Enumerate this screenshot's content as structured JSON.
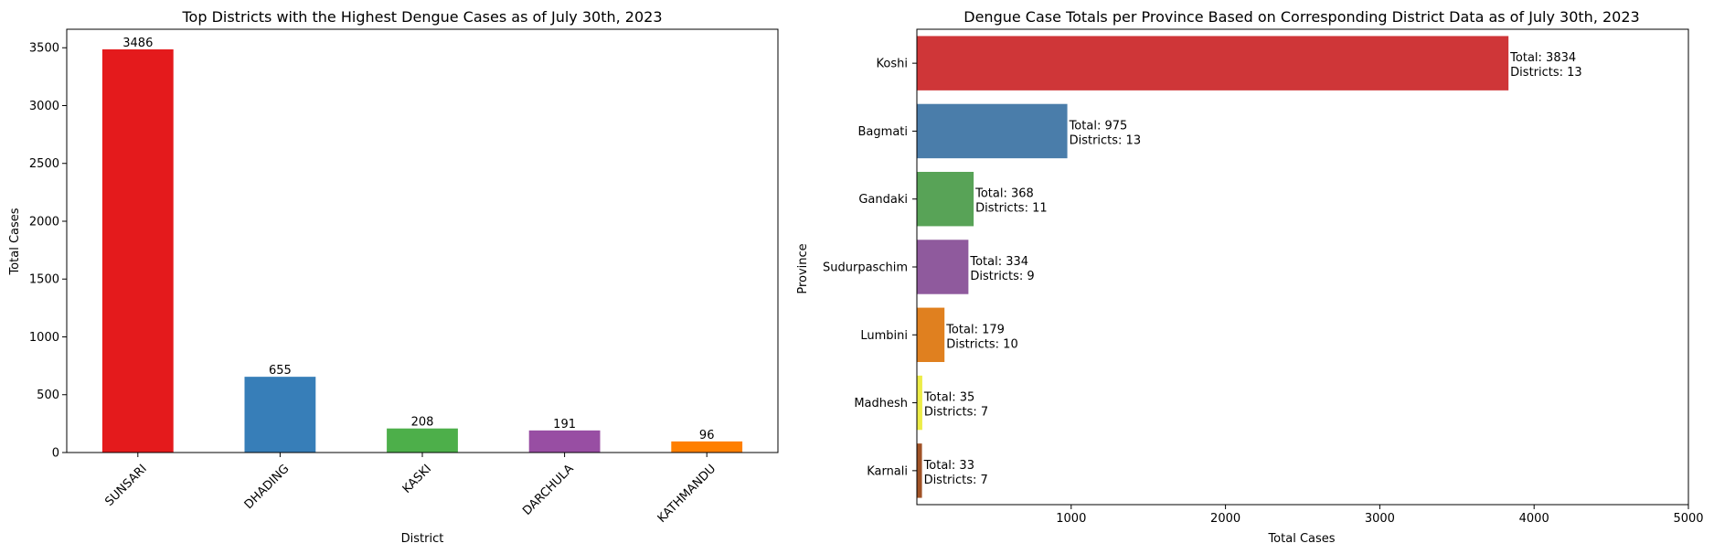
{
  "chart_data": [
    {
      "type": "bar",
      "title": "Top Districts with the Highest Dengue Cases as of July 30th, 2023",
      "xlabel": "District",
      "ylabel": "Total Cases",
      "categories": [
        "SUNSARI",
        "DHADING",
        "KASKI",
        "DARCHULA",
        "KATHMANDU"
      ],
      "values": [
        3486,
        655,
        208,
        191,
        96
      ],
      "data_labels": [
        "3486",
        "655",
        "208",
        "191",
        "96"
      ],
      "colors": [
        "#e41a1c",
        "#377eb8",
        "#4daf4a",
        "#984ea3",
        "#ff7f00"
      ],
      "ylim": [
        0,
        3660
      ],
      "yticks": [
        0,
        500,
        1000,
        1500,
        2000,
        2500,
        3000,
        3500
      ],
      "ytick_labels": [
        "0",
        "500",
        "1000",
        "1500",
        "2000",
        "2500",
        "3000",
        "3500"
      ],
      "xtick_rotation": 45,
      "grid": false
    },
    {
      "type": "bar",
      "orientation": "horizontal",
      "title": "Dengue Case Totals per Province Based on Corresponding District Data as of July 30th, 2023",
      "xlabel": "Total Cases",
      "ylabel": "Province",
      "categories": [
        "Koshi",
        "Bagmati",
        "Gandaki",
        "Sudurpaschim",
        "Lumbini",
        "Madhesh",
        "Karnali"
      ],
      "values": [
        3834,
        975,
        368,
        334,
        179,
        35,
        33
      ],
      "annotations": [
        [
          "Total: 3834",
          "Districts: 13"
        ],
        [
          "Total: 975",
          "Districts: 13"
        ],
        [
          "Total: 368",
          "Districts: 11"
        ],
        [
          "Total: 334",
          "Districts: 9"
        ],
        [
          "Total: 179",
          "Districts: 10"
        ],
        [
          "Total: 35",
          "Districts: 7"
        ],
        [
          "Total: 33",
          "Districts: 7"
        ]
      ],
      "colors": [
        "#cf3638",
        "#4a7daa",
        "#58a357",
        "#8f5a9d",
        "#e0801f",
        "#eded47",
        "#a05226"
      ],
      "xlim": [
        0,
        5000
      ],
      "xticks": [
        1000,
        2000,
        3000,
        4000,
        5000
      ],
      "xtick_labels": [
        "1000",
        "2000",
        "3000",
        "4000",
        "5000"
      ],
      "grid": false
    }
  ]
}
